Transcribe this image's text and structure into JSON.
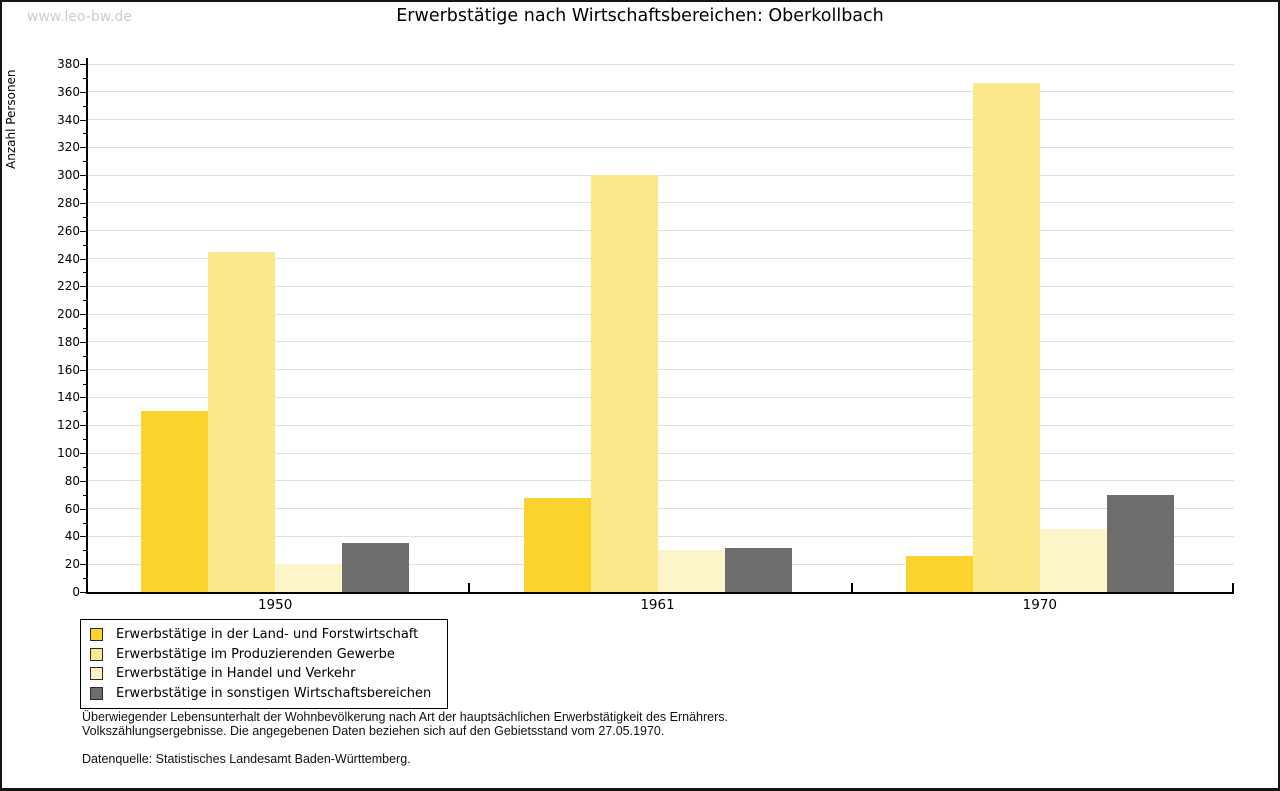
{
  "watermark": "www.leo-bw.de",
  "title": "Erwerbstätige nach Wirtschaftsbereichen: Oberkollbach",
  "chart_data": {
    "type": "bar",
    "title": "Erwerbstätige nach Wirtschaftsbereichen: Oberkollbach",
    "xlabel": "",
    "ylabel": "Anzahl Personen",
    "ylim": [
      0,
      380
    ],
    "ytick_step": 20,
    "ytick_minor_step": 10,
    "grid": true,
    "legend_position": "bottom-left",
    "categories": [
      "1950",
      "1961",
      "1970"
    ],
    "series": [
      {
        "name": "Erwerbstätige in der Land- und Forstwirtschaft",
        "color": "#fcd32d",
        "values": [
          130,
          68,
          26
        ]
      },
      {
        "name": "Erwerbstätige im Produzierenden Gewerbe",
        "color": "#fce88c",
        "values": [
          245,
          300,
          366
        ]
      },
      {
        "name": "Erwerbstätige in Handel und Verkehr",
        "color": "#fdf5c9",
        "values": [
          20,
          30,
          45
        ]
      },
      {
        "name": "Erwerbstätige in sonstigen Wirtschaftsbereichen",
        "color": "#6d6d6d",
        "values": [
          35,
          32,
          70
        ]
      }
    ],
    "colors": {
      "gridline": "#e0e0e0",
      "axis": "#000000",
      "watermark": "#cccccc"
    }
  },
  "footnotes": {
    "line1": "Überwiegender Lebensunterhalt der Wohnbevölkerung nach Art der hauptsächlichen Erwerbstätigkeit des Ernährers.",
    "line2": "Volkszählungsergebnisse. Die angegebenen Daten beziehen sich auf den Gebietsstand vom 27.05.1970.",
    "source": "Datenquelle: Statistisches Landesamt Baden-Württemberg."
  }
}
